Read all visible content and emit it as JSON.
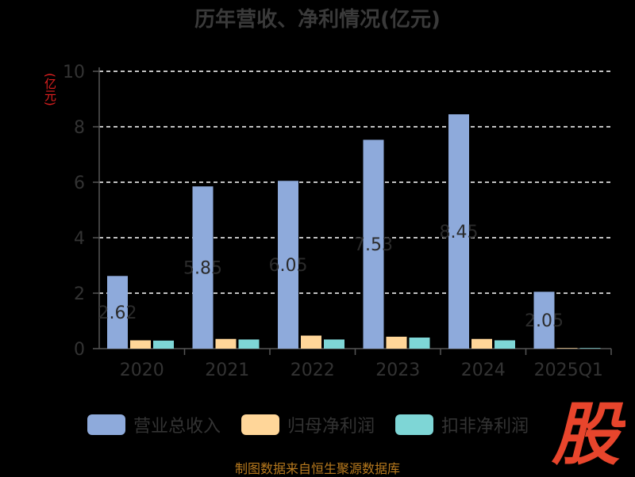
{
  "chart_data": {
    "type": "bar",
    "title": "历年营收、净利情况(亿元)",
    "ylabel": "(亿元)",
    "categories": [
      "2020",
      "2021",
      "2022",
      "2023",
      "2024",
      "2025Q1"
    ],
    "ylim": [
      0,
      10
    ],
    "yticks": [
      0,
      2,
      4,
      6,
      8,
      10
    ],
    "grid": true,
    "legend_position": "bottom",
    "series": [
      {
        "name": "营业总收入",
        "color": "#8eaadb",
        "values": [
          2.62,
          5.85,
          6.05,
          7.53,
          8.45,
          2.05
        ],
        "labels": [
          "2.62",
          "5.85",
          "6.05",
          "7.53",
          "8.45",
          "2.05"
        ]
      },
      {
        "name": "归母净利润",
        "color": "#ffd699",
        "values": [
          0.3,
          0.35,
          0.47,
          0.43,
          0.35,
          0.02
        ],
        "labels": null
      },
      {
        "name": "扣非净利润",
        "color": "#7ed6d6",
        "values": [
          0.29,
          0.33,
          0.33,
          0.4,
          0.3,
          0.02
        ],
        "labels": null
      }
    ]
  },
  "logo": {
    "text": "股",
    "color": "#e8452c"
  },
  "source_text": "制图数据来自恒生聚源数据库"
}
